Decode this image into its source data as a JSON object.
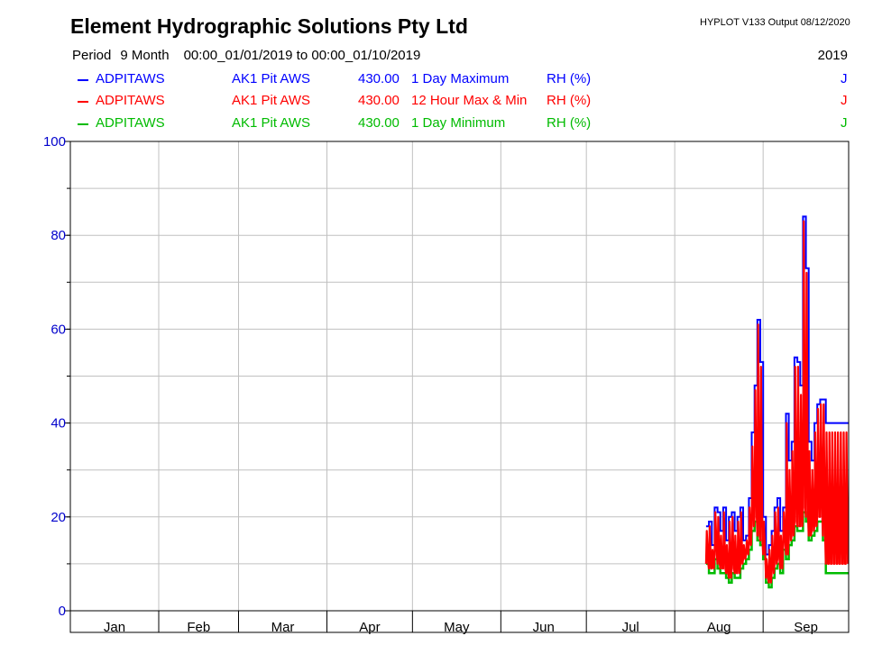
{
  "header": {
    "title": "Element Hydrographic Solutions Pty Ltd",
    "version": "HYPLOT V133  Output 08/12/2020",
    "period_label": "Period",
    "period_length": "9 Month",
    "period_range": "00:00_01/01/2019 to 00:00_01/10/2019",
    "year": "2019"
  },
  "legend": [
    {
      "site": "ADPITAWS",
      "name": "AK1 Pit AWS",
      "code": "430.00",
      "stat": "1 Day Maximum",
      "unit": "RH (%)",
      "flag": "J",
      "color": "#0000ff"
    },
    {
      "site": "ADPITAWS",
      "name": "AK1 Pit AWS",
      "code": "430.00",
      "stat": "12 Hour Max & Min",
      "unit": "RH (%)",
      "flag": "J",
      "color": "#ff0000"
    },
    {
      "site": "ADPITAWS",
      "name": "AK1 Pit AWS",
      "code": "430.00",
      "stat": "1 Day Minimum",
      "unit": "RH (%)",
      "flag": "J",
      "color": "#00bb00"
    }
  ],
  "chart_data": {
    "type": "line",
    "title": "Element Hydrographic Solutions Pty Ltd",
    "xlabel": "",
    "ylabel": "",
    "ylim": [
      0,
      100
    ],
    "yticks": [
      0,
      20,
      40,
      60,
      80,
      100
    ],
    "xlim": [
      "2019-01-01",
      "2019-10-01"
    ],
    "month_labels": [
      "Jan",
      "Feb",
      "Mar",
      "Apr",
      "May",
      "Jun",
      "Jul",
      "Aug",
      "Sep"
    ],
    "grid": true,
    "series": [
      {
        "name": "1 Day Maximum",
        "color": "#0000ff",
        "x": [
          "2019-08-12",
          "2019-08-13",
          "2019-08-14",
          "2019-08-15",
          "2019-08-16",
          "2019-08-17",
          "2019-08-18",
          "2019-08-19",
          "2019-08-20",
          "2019-08-21",
          "2019-08-22",
          "2019-08-23",
          "2019-08-24",
          "2019-08-25",
          "2019-08-26",
          "2019-08-27",
          "2019-08-28",
          "2019-08-29",
          "2019-08-30",
          "2019-08-31",
          "2019-09-01",
          "2019-09-02",
          "2019-09-03",
          "2019-09-04",
          "2019-09-05",
          "2019-09-06",
          "2019-09-07",
          "2019-09-08",
          "2019-09-09",
          "2019-09-10",
          "2019-09-11",
          "2019-09-12",
          "2019-09-13",
          "2019-09-14",
          "2019-09-15",
          "2019-09-16",
          "2019-09-17",
          "2019-09-18",
          "2019-09-19",
          "2019-09-20",
          "2019-09-21",
          "2019-09-22",
          "2019-09-23",
          "2019-09-24",
          "2019-09-25",
          "2019-09-26",
          "2019-09-27",
          "2019-09-28",
          "2019-09-29",
          "2019-09-30"
        ],
        "y": [
          18,
          19,
          14,
          22,
          21,
          17,
          22,
          15,
          20,
          21,
          17,
          20,
          22,
          15,
          16,
          24,
          38,
          48,
          62,
          53,
          20,
          12,
          14,
          17,
          22,
          24,
          17,
          22,
          42,
          32,
          36,
          54,
          53,
          48,
          84,
          73,
          36,
          32,
          40,
          44,
          45,
          45,
          40,
          40,
          40,
          40,
          40,
          40,
          40,
          40
        ]
      },
      {
        "name": "12 Hour Max & Min",
        "color": "#ff0000",
        "x": [
          "2019-08-12",
          "2019-08-13",
          "2019-08-14",
          "2019-08-15",
          "2019-08-16",
          "2019-08-17",
          "2019-08-18",
          "2019-08-19",
          "2019-08-20",
          "2019-08-21",
          "2019-08-22",
          "2019-08-23",
          "2019-08-24",
          "2019-08-25",
          "2019-08-26",
          "2019-08-27",
          "2019-08-28",
          "2019-08-29",
          "2019-08-30",
          "2019-08-31",
          "2019-09-01",
          "2019-09-02",
          "2019-09-03",
          "2019-09-04",
          "2019-09-05",
          "2019-09-06",
          "2019-09-07",
          "2019-09-08",
          "2019-09-09",
          "2019-09-10",
          "2019-09-11",
          "2019-09-12",
          "2019-09-13",
          "2019-09-14",
          "2019-09-15",
          "2019-09-16",
          "2019-09-17",
          "2019-09-18",
          "2019-09-19",
          "2019-09-20",
          "2019-09-21",
          "2019-09-22",
          "2019-09-23",
          "2019-09-24",
          "2019-09-25",
          "2019-09-26",
          "2019-09-27",
          "2019-09-28",
          "2019-09-29",
          "2019-09-30"
        ],
        "y": [
          17,
          18,
          13,
          21,
          20,
          16,
          21,
          14,
          19,
          20,
          16,
          19,
          21,
          14,
          15,
          22,
          35,
          47,
          61,
          52,
          19,
          11,
          13,
          16,
          21,
          22,
          16,
          21,
          40,
          30,
          34,
          52,
          52,
          46,
          83,
          72,
          34,
          30,
          38,
          43,
          44,
          44,
          38,
          38,
          38,
          38,
          38,
          38,
          38,
          38
        ],
        "y_min": [
          10,
          9,
          9,
          12,
          10,
          9,
          9,
          8,
          7,
          9,
          8,
          8,
          10,
          11,
          12,
          14,
          18,
          20,
          16,
          15,
          12,
          7,
          6,
          8,
          10,
          11,
          9,
          14,
          12,
          15,
          16,
          19,
          18,
          18,
          22,
          20,
          16,
          17,
          18,
          20,
          20,
          16,
          10,
          10,
          10,
          10,
          10,
          10,
          10,
          10
        ]
      },
      {
        "name": "1 Day Minimum",
        "color": "#00bb00",
        "x": [
          "2019-08-12",
          "2019-08-13",
          "2019-08-14",
          "2019-08-15",
          "2019-08-16",
          "2019-08-17",
          "2019-08-18",
          "2019-08-19",
          "2019-08-20",
          "2019-08-21",
          "2019-08-22",
          "2019-08-23",
          "2019-08-24",
          "2019-08-25",
          "2019-08-26",
          "2019-08-27",
          "2019-08-28",
          "2019-08-29",
          "2019-08-30",
          "2019-08-31",
          "2019-09-01",
          "2019-09-02",
          "2019-09-03",
          "2019-09-04",
          "2019-09-05",
          "2019-09-06",
          "2019-09-07",
          "2019-09-08",
          "2019-09-09",
          "2019-09-10",
          "2019-09-11",
          "2019-09-12",
          "2019-09-13",
          "2019-09-14",
          "2019-09-15",
          "2019-09-16",
          "2019-09-17",
          "2019-09-18",
          "2019-09-19",
          "2019-09-20",
          "2019-09-21",
          "2019-09-22",
          "2019-09-23",
          "2019-09-24",
          "2019-09-25",
          "2019-09-26",
          "2019-09-27",
          "2019-09-28",
          "2019-09-29",
          "2019-09-30"
        ],
        "y": [
          10,
          8,
          8,
          11,
          9,
          8,
          8,
          7,
          6,
          8,
          7,
          7,
          9,
          10,
          11,
          13,
          17,
          19,
          15,
          14,
          11,
          6,
          5,
          7,
          9,
          10,
          8,
          13,
          11,
          14,
          15,
          18,
          17,
          17,
          21,
          19,
          15,
          16,
          17,
          19,
          19,
          15,
          8,
          8,
          8,
          8,
          8,
          8,
          8,
          8
        ]
      }
    ]
  }
}
